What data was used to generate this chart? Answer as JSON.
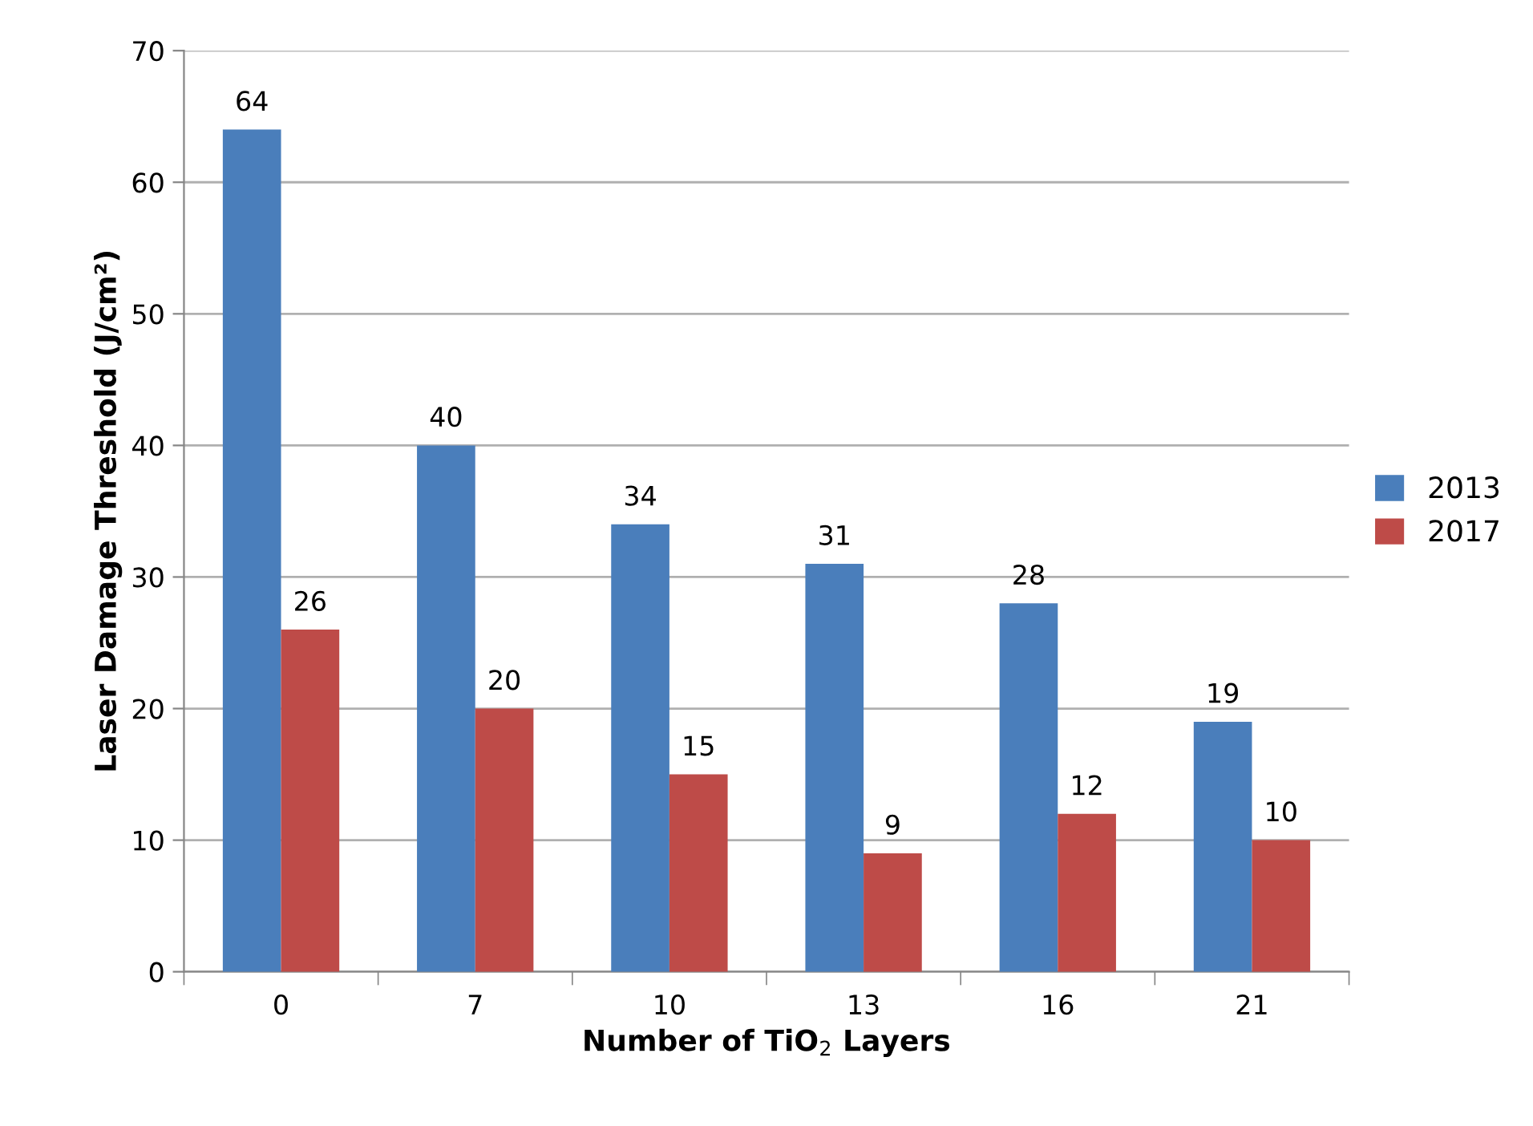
{
  "chart_data": {
    "type": "bar",
    "xlabel": "Number of TiO$_{2}$ Layers",
    "ylabel": "Laser Damage Threshold (J/cm²)",
    "categories": [
      "0",
      "7",
      "10",
      "13",
      "16",
      "21"
    ],
    "series": [
      {
        "name": "2013",
        "color": "#4a7ebb",
        "values": [
          64,
          40,
          34,
          31,
          28,
          19
        ]
      },
      {
        "name": "2017",
        "color": "#be4b48",
        "values": [
          26,
          20,
          15,
          9,
          12,
          10
        ]
      }
    ],
    "ylim": [
      0,
      70
    ],
    "yticks": [
      0,
      10,
      20,
      30,
      40,
      50,
      60,
      70
    ],
    "grid": "y",
    "legend": "right",
    "data_labels": true
  }
}
